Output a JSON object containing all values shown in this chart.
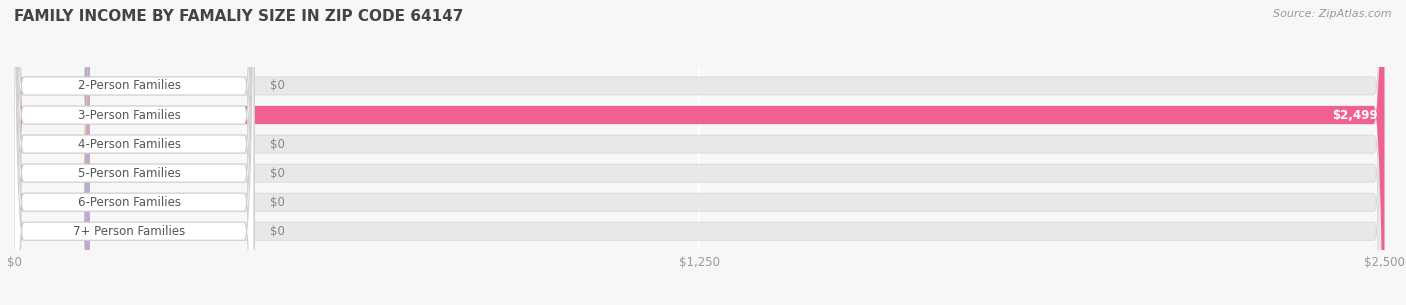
{
  "title": "FAMILY INCOME BY FAMALIY SIZE IN ZIP CODE 64147",
  "source": "Source: ZipAtlas.com",
  "categories": [
    "2-Person Families",
    "3-Person Families",
    "4-Person Families",
    "5-Person Families",
    "6-Person Families",
    "7+ Person Families"
  ],
  "values": [
    0,
    2499,
    0,
    0,
    0,
    0
  ],
  "bar_colors": [
    "#aab0d8",
    "#f06090",
    "#f5c080",
    "#f0a898",
    "#a0b8e0",
    "#c0a8d0"
  ],
  "dot_colors": [
    "#aab0d8",
    "#f06090",
    "#f5c080",
    "#f0a898",
    "#a0b8e0",
    "#c0a8d0"
  ],
  "value_labels": [
    "$0",
    "$2,499",
    "$0",
    "$0",
    "$0",
    "$0"
  ],
  "xlim": [
    0,
    2500
  ],
  "xticks": [
    0,
    1250,
    2500
  ],
  "xtick_labels": [
    "$0",
    "$1,250",
    "$2,500"
  ],
  "bg_color": "#f7f7f7",
  "bar_bg_color": "#e8e8e8",
  "row_bg_color": "#f0f0f0",
  "title_fontsize": 11,
  "bar_height": 0.62,
  "label_fontsize": 8.5,
  "source_fontsize": 8
}
